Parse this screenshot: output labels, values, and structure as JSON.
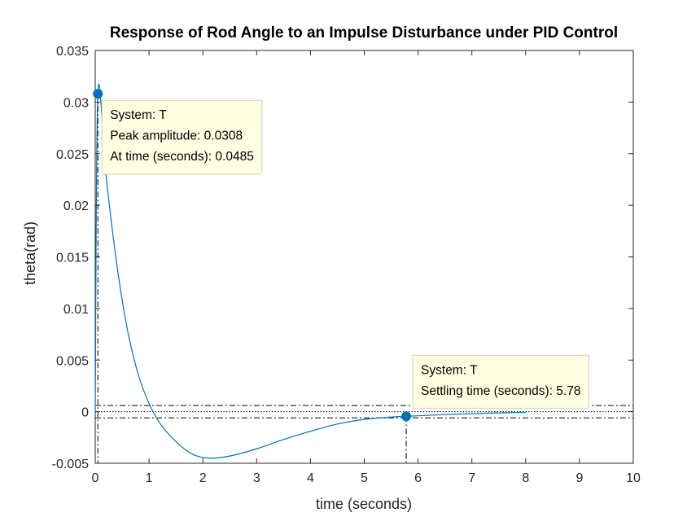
{
  "chart_data": {
    "type": "line",
    "title": "Response of Rod Angle to an Impulse Disturbance under PID Control",
    "xlabel": "time (seconds)",
    "ylabel": "theta(rad)",
    "xlim": [
      0,
      10
    ],
    "ylim": [
      -0.005,
      0.035
    ],
    "x_ticks": [
      0,
      1,
      2,
      3,
      4,
      5,
      6,
      7,
      8,
      9,
      10
    ],
    "x_tick_labels": [
      "0",
      "1",
      "2",
      "3",
      "4",
      "5",
      "6",
      "7",
      "8",
      "9",
      "10"
    ],
    "y_ticks": [
      -0.005,
      0,
      0.005,
      0.01,
      0.015,
      0.02,
      0.025,
      0.03,
      0.035
    ],
    "y_tick_labels": [
      "-0.005",
      "0",
      "0.005",
      "0.01",
      "0.015",
      "0.02",
      "0.025",
      "0.03",
      "0.035"
    ],
    "grid": false,
    "series": [
      {
        "color": "#0072bd",
        "x": [
          0,
          0.0485,
          0.2,
          0.4,
          0.6,
          0.8,
          1.0,
          1.2,
          1.5,
          1.8,
          2.1,
          2.5,
          3.0,
          3.5,
          4.0,
          4.5,
          5.0,
          5.5,
          5.78,
          6.0,
          6.5,
          7.0,
          7.5,
          8.0
        ],
        "y": [
          0,
          0.0308,
          0.0229,
          0.0143,
          0.0079,
          0.0036,
          0.0008,
          -0.0011,
          -0.0029,
          -0.0041,
          -0.0045,
          -0.0043,
          -0.0036,
          -0.0027,
          -0.0019,
          -0.0012,
          -0.00075,
          -0.00052,
          -0.00045,
          -0.0004,
          -0.00028,
          -0.00019,
          -0.00012,
          -7e-05
        ]
      }
    ],
    "settling_band": {
      "upper": 0.0006,
      "lower": -0.0006
    },
    "final_value": 0,
    "datatips": [
      {
        "x": 0.0485,
        "y": 0.0308,
        "lines": [
          "System: T",
          "Peak amplitude: 0.0308",
          "At time (seconds): 0.0485"
        ]
      },
      {
        "x": 5.78,
        "y": -0.00045,
        "lines": [
          "System: T",
          "Settling time (seconds): 5.78"
        ]
      }
    ],
    "colors": {
      "line": "#0072bd",
      "marker": "#0072bd",
      "tip_fill": "#ffffe1",
      "tip_border": "#cfcfbf",
      "axes": "#262626"
    }
  }
}
